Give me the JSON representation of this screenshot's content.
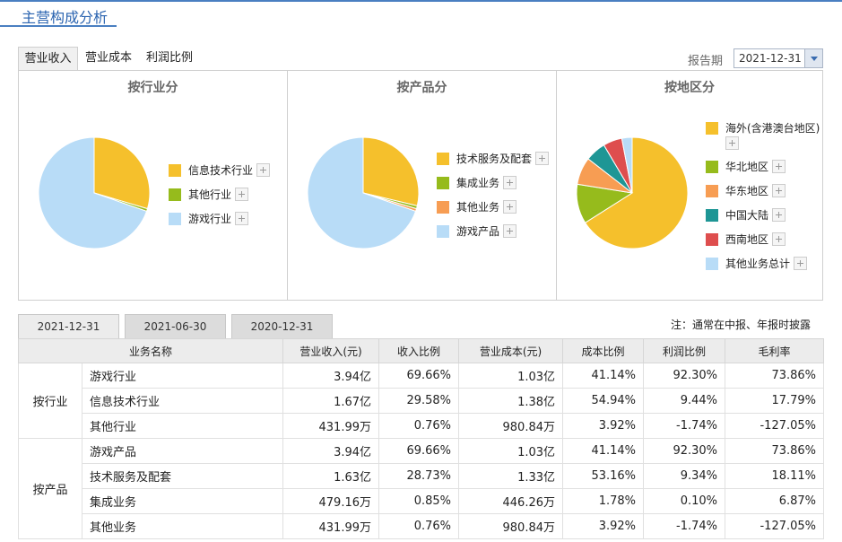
{
  "title": "主营构成分析",
  "top_tabs": [
    "营业收入",
    "营业成本",
    "利润比例"
  ],
  "period": {
    "label": "报告期",
    "value": "2021-12-31"
  },
  "colors": {
    "yellow": "#f5c02c",
    "green": "#96bb1c",
    "lightblue": "#b8dcf7",
    "orange": "#f79d53",
    "teal": "#1e9695",
    "red": "#de4e4e",
    "accent": "#2b64b0"
  },
  "panels": [
    {
      "title": "按行业分",
      "legend": [
        {
          "label": "信息技术行业",
          "color": "#f5c02c"
        },
        {
          "label": "其他行业",
          "color": "#96bb1c"
        },
        {
          "label": "游戏行业",
          "color": "#b8dcf7"
        }
      ]
    },
    {
      "title": "按产品分",
      "legend": [
        {
          "label": "技术服务及配套",
          "color": "#f5c02c"
        },
        {
          "label": "集成业务",
          "color": "#96bb1c"
        },
        {
          "label": "其他业务",
          "color": "#f79d53"
        },
        {
          "label": "游戏产品",
          "color": "#b8dcf7"
        }
      ]
    },
    {
      "title": "按地区分",
      "legend": [
        {
          "label": "海外(含港澳台地区)",
          "color": "#f5c02c"
        },
        {
          "label": "华北地区",
          "color": "#96bb1c"
        },
        {
          "label": "华东地区",
          "color": "#f79d53"
        },
        {
          "label": "中国大陆",
          "color": "#1e9695"
        },
        {
          "label": "西南地区",
          "color": "#de4e4e"
        },
        {
          "label": "其他业务总计",
          "color": "#b8dcf7"
        }
      ]
    }
  ],
  "chart_data": [
    {
      "type": "pie",
      "title": "按行业分",
      "categories": [
        "信息技术行业",
        "其他行业",
        "游戏行业"
      ],
      "values": [
        29.58,
        0.76,
        69.66
      ]
    },
    {
      "type": "pie",
      "title": "按产品分",
      "categories": [
        "技术服务及配套",
        "集成业务",
        "其他业务",
        "游戏产品"
      ],
      "values": [
        28.73,
        0.85,
        0.76,
        69.66
      ]
    },
    {
      "type": "pie",
      "title": "按地区分",
      "categories": [
        "海外(含港澳台地区)",
        "华北地区",
        "华东地区",
        "中国大陆",
        "西南地区",
        "其他业务总计"
      ],
      "values": [
        66,
        11.5,
        8,
        6,
        5.5,
        3
      ]
    }
  ],
  "date_tabs": [
    "2021-12-31",
    "2021-06-30",
    "2020-12-31"
  ],
  "note": "注：通常在中报、年报时披露",
  "table": {
    "headers": [
      "业务名称",
      "营业收入(元)",
      "收入比例",
      "营业成本(元)",
      "成本比例",
      "利润比例",
      "毛利率"
    ],
    "groups": [
      {
        "category": "按行业",
        "rows": [
          [
            "游戏行业",
            "3.94亿",
            "69.66%",
            "1.03亿",
            "41.14%",
            "92.30%",
            "73.86%"
          ],
          [
            "信息技术行业",
            "1.67亿",
            "29.58%",
            "1.38亿",
            "54.94%",
            "9.44%",
            "17.79%"
          ],
          [
            "其他行业",
            "431.99万",
            "0.76%",
            "980.84万",
            "3.92%",
            "-1.74%",
            "-127.05%"
          ]
        ]
      },
      {
        "category": "按产品",
        "rows": [
          [
            "游戏产品",
            "3.94亿",
            "69.66%",
            "1.03亿",
            "41.14%",
            "92.30%",
            "73.86%"
          ],
          [
            "技术服务及配套",
            "1.63亿",
            "28.73%",
            "1.33亿",
            "53.16%",
            "9.34%",
            "18.11%"
          ],
          [
            "集成业务",
            "479.16万",
            "0.85%",
            "446.26万",
            "1.78%",
            "0.10%",
            "6.87%"
          ],
          [
            "其他业务",
            "431.99万",
            "0.76%",
            "980.84万",
            "3.92%",
            "-1.74%",
            "-127.05%"
          ]
        ]
      }
    ]
  }
}
